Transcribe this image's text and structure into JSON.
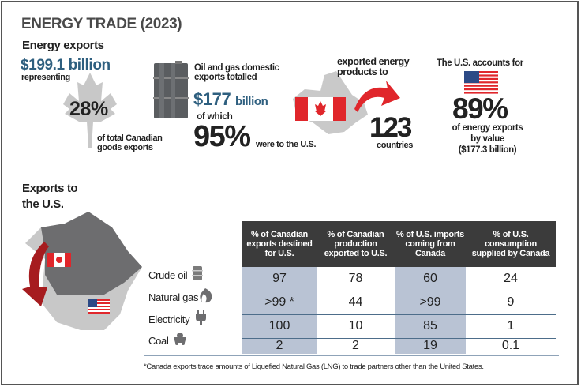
{
  "title": "ENERGY TRADE (2023)",
  "energy_exports": {
    "heading": "Energy exports",
    "amount": "$199.1 billion",
    "representing": "representing",
    "percent": "28%",
    "note": "of total Canadian goods exports"
  },
  "oil_gas": {
    "text": "Oil and gas domestic exports totalled",
    "amount": "$177",
    "unit": "billion",
    "of_which": "of which",
    "percent": "95%",
    "to_us": "were to the U.S."
  },
  "countries": {
    "text": "exported energy products to",
    "count": "123",
    "label": "countries"
  },
  "us_share": {
    "text": "The U.S. accounts for",
    "percent": "89%",
    "line1": "of energy exports",
    "line2": "by value",
    "line3": "($177.3 billion)"
  },
  "exports_us": {
    "heading_line1": "Exports to",
    "heading_line2": "the U.S."
  },
  "table": {
    "headers": [
      "% of Canadian exports destined for U.S.",
      "% of Canadian production exported to U.S.",
      "% of U.S. imports coming from Canada",
      "% of U.S. consumption supplied by Canada"
    ],
    "rows": [
      {
        "label": "Crude oil",
        "icon": "barrel-icon",
        "values": [
          "97",
          "78",
          "60",
          "24"
        ]
      },
      {
        "label": "Natural gas",
        "icon": "flame-icon",
        "values": [
          ">99 *",
          "44",
          ">99",
          "9"
        ]
      },
      {
        "label": "Electricity",
        "icon": "plug-icon",
        "values": [
          "100",
          "10",
          "85",
          "1"
        ]
      },
      {
        "label": "Coal",
        "icon": "mine-cart-icon",
        "values": [
          "2",
          "2",
          "19",
          "0.1"
        ]
      }
    ]
  },
  "footnote": "*Canada exports trace amounts of Liquefied Natural Gas (LNG) to trade partners other than the United States.",
  "colors": {
    "accent_blue": "#2e5f7f",
    "table_header": "#3b3b3b",
    "table_shade": "#b9c3d4",
    "red": "#e0262b"
  }
}
